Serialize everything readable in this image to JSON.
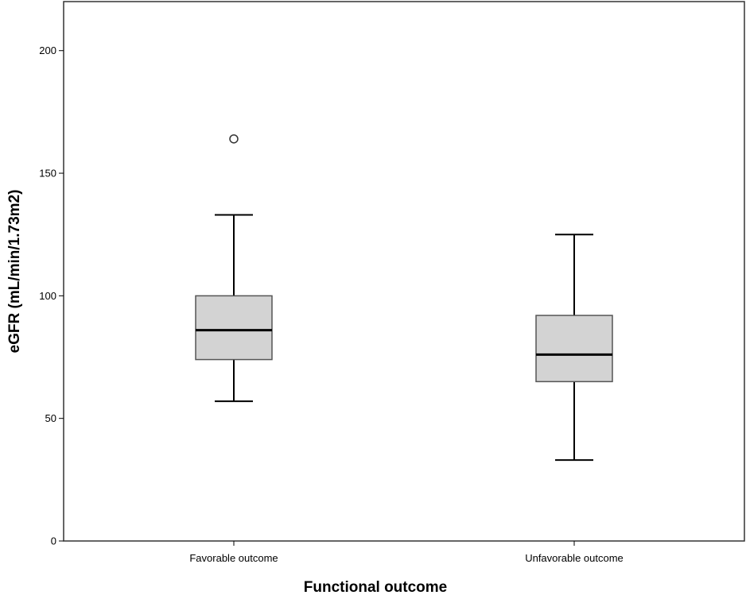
{
  "chart_data": {
    "type": "box",
    "title": "",
    "xlabel": "Functional outcome",
    "ylabel": "eGFR (mL/min/1.73m2)",
    "ylim": [
      0,
      220
    ],
    "yticks": [
      0,
      50,
      100,
      150,
      200
    ],
    "categories": [
      "Favorable outcome",
      "Unfavorable outcome"
    ],
    "boxes": [
      {
        "category": "Favorable outcome",
        "whisker_low": 57,
        "q1": 74,
        "median": 86,
        "q3": 100,
        "whisker_high": 133,
        "outliers": [
          164
        ]
      },
      {
        "category": "Unfavorable outcome",
        "whisker_low": 33,
        "q1": 65,
        "median": 76,
        "q3": 92,
        "whisker_high": 125,
        "outliers": []
      }
    ],
    "grid": false,
    "box_fill": "#d3d3d3",
    "line_color": "#000000",
    "frame_color": "#333333"
  }
}
